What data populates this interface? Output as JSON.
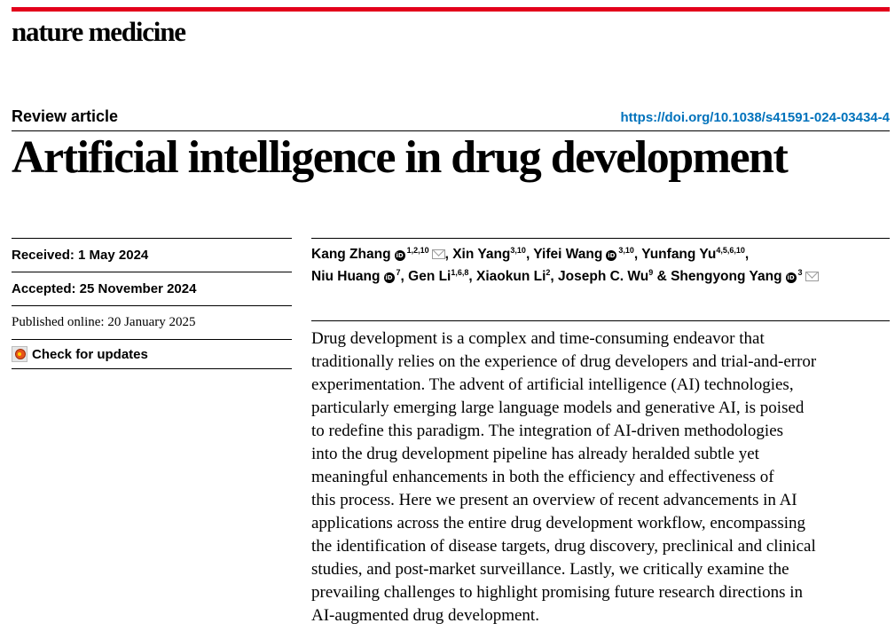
{
  "header": {
    "journal_name": "nature medicine",
    "accent_color": "#e3001b",
    "article_type": "Review article",
    "doi": "https://doi.org/10.1038/s41591-024-03434-4"
  },
  "title": "Artificial intelligence in drug development",
  "history": {
    "received": "Received: 1 May 2024",
    "accepted": "Accepted: 25 November 2024",
    "published": "Published online: 20 January 2025",
    "check_updates": "Check for updates"
  },
  "authors": {
    "line1": [
      {
        "name": "Kang Zhang",
        "sup": "1,2,10",
        "sep": ", "
      },
      {
        "name": "Xin Yang",
        "sup": "3,10",
        "sep": ", "
      },
      {
        "name": "Yifei Wang",
        "sup": "3,10",
        "sep": ", "
      },
      {
        "name": "Yunfang Yu",
        "sup": "4,5,6,10",
        "sep": ","
      }
    ],
    "line2": [
      {
        "name": "Niu Huang",
        "sup": "7",
        "sep": ", "
      },
      {
        "name": "Gen Li",
        "sup": "1,6,8",
        "sep": ", "
      },
      {
        "name": "Xiaokun Li",
        "sup": "2",
        "sep": ", "
      },
      {
        "name": "Joseph C. Wu",
        "sup": "9",
        "sep": " & "
      },
      {
        "name": "Shengyong Yang",
        "sup": "3",
        "sep": ""
      }
    ]
  },
  "abstract_lines": [
    "Drug development is a complex and time-consuming endeavor that",
    "traditionally relies on the experience of drug developers and trial-and-error",
    "experimentation. The advent of artificial intelligence (AI) technologies,",
    "particularly emerging large language models and generative AI, is poised",
    "to redefine this paradigm. The integration of AI-driven methodologies",
    "into the drug development pipeline has already heralded subtle yet",
    "meaningful enhancements in both the efficiency and effectiveness of",
    "this process. Here we present an overview of recent advancements in AI",
    "applications across the entire drug development workflow, encompassing",
    "the identification of disease targets, drug discovery, preclinical and clinical",
    "studies, and post-market surveillance. Lastly, we critically examine the",
    "prevailing challenges to highlight promising future research directions in",
    "AI-augmented drug development."
  ],
  "icons": {
    "orcid": "orcid-icon",
    "mail": "mail-icon",
    "check": "crossmark-icon"
  }
}
